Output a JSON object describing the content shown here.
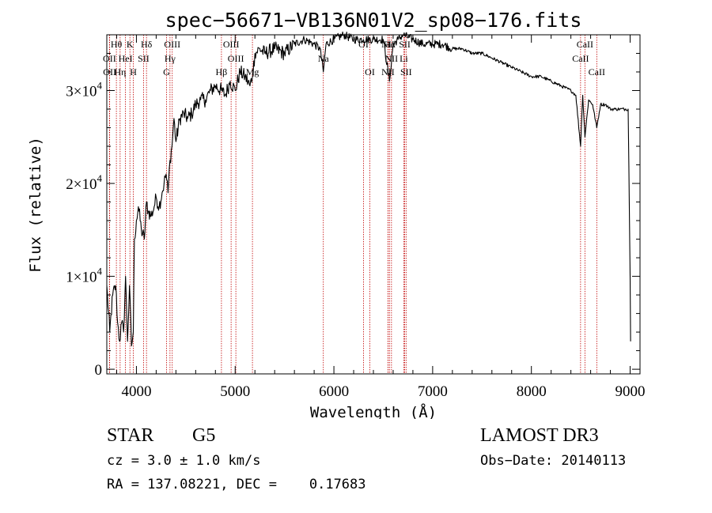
{
  "chart_data": {
    "type": "line",
    "title": "spec−56671−VB136N01V2_sp08−176.fits",
    "xlabel": "Wavelength (Å)",
    "ylabel": "Flux (relative)",
    "xlim": [
      3700,
      9100
    ],
    "ylim": [
      -500,
      36000
    ],
    "x_ticks": [
      {
        "value": 4000,
        "label": "4000"
      },
      {
        "value": 5000,
        "label": "5000"
      },
      {
        "value": 6000,
        "label": "6000"
      },
      {
        "value": 7000,
        "label": "7000"
      },
      {
        "value": 8000,
        "label": "8000"
      },
      {
        "value": 9000,
        "label": "9000"
      }
    ],
    "y_ticks": [
      {
        "value": 0,
        "mantissa": "0",
        "exponent": ""
      },
      {
        "value": 10000,
        "mantissa": "1×10",
        "exponent": "4"
      },
      {
        "value": 20000,
        "mantissa": "2×10",
        "exponent": "4"
      },
      {
        "value": 30000,
        "mantissa": "3×10",
        "exponent": "4"
      }
    ],
    "series": [
      {
        "name": "spectrum",
        "x": [
          3700,
          3730,
          3760,
          3790,
          3810,
          3830,
          3850,
          3870,
          3890,
          3910,
          3930,
          3950,
          3968,
          3980,
          4000,
          4020,
          4050,
          4080,
          4102,
          4120,
          4150,
          4180,
          4200,
          4230,
          4260,
          4280,
          4300,
          4320,
          4340,
          4360,
          4380,
          4400,
          4440,
          4480,
          4520,
          4560,
          4600,
          4650,
          4700,
          4750,
          4800,
          4861,
          4900,
          4950,
          5000,
          5050,
          5100,
          5150,
          5175,
          5200,
          5250,
          5300,
          5400,
          5500,
          5600,
          5700,
          5800,
          5860,
          5893,
          5920,
          6000,
          6100,
          6200,
          6300,
          6400,
          6500,
          6563,
          6600,
          6650,
          6700,
          6800,
          6900,
          7000,
          7100,
          7200,
          7300,
          7400,
          7500,
          7600,
          7700,
          7800,
          7900,
          8000,
          8100,
          8200,
          8300,
          8400,
          8450,
          8498,
          8520,
          8542,
          8580,
          8620,
          8662,
          8700,
          8750,
          8800,
          8850,
          8900,
          8950,
          8980,
          9000,
          9005
        ],
        "values": [
          9000,
          4000,
          8000,
          9000,
          5000,
          3000,
          5000,
          4000,
          10000,
          3000,
          9000,
          2500,
          4000,
          14000,
          16000,
          17500,
          15000,
          14000,
          18000,
          17000,
          16500,
          17500,
          18500,
          17500,
          19000,
          20000,
          21000,
          19000,
          22500,
          24000,
          27000,
          24500,
          27000,
          27500,
          27000,
          27500,
          28500,
          29000,
          29000,
          30000,
          30500,
          30000,
          29500,
          31000,
          30000,
          32000,
          31500,
          30500,
          31500,
          34000,
          34500,
          34000,
          34500,
          34000,
          35000,
          35500,
          35000,
          34500,
          32000,
          35000,
          35500,
          36000,
          35500,
          35500,
          35500,
          35500,
          31000,
          35000,
          35500,
          36000,
          35500,
          35000,
          35000,
          35000,
          34500,
          34500,
          34000,
          34000,
          33500,
          33000,
          32500,
          32000,
          31500,
          31500,
          31000,
          30500,
          30000,
          29500,
          24000,
          29500,
          25000,
          29000,
          28500,
          26000,
          28500,
          28500,
          28000,
          28000,
          28000,
          28000,
          28000,
          10000,
          3000
        ]
      }
    ],
    "line_markers": [
      {
        "name": "Hθ",
        "wavelength": 3797,
        "row": 0
      },
      {
        "name": "K",
        "wavelength": 3934,
        "row": 0
      },
      {
        "name": "Hδ",
        "wavelength": 4102,
        "row": 0
      },
      {
        "name": "OIII",
        "wavelength": 4363,
        "row": 0
      },
      {
        "name": "OIII",
        "wavelength": 4959,
        "row": 0
      },
      {
        "name": "OI",
        "wavelength": 6300,
        "row": 0
      },
      {
        "name": "NII",
        "wavelength": 6548,
        "row": 0
      },
      {
        "name": "Hα",
        "wavelength": 6563,
        "row": 0
      },
      {
        "name": "SII",
        "wavelength": 6717,
        "row": 0
      },
      {
        "name": "CaII",
        "wavelength": 8542,
        "row": 0
      },
      {
        "name": "OII",
        "wavelength": 3727,
        "row": 1
      },
      {
        "name": "HeI",
        "wavelength": 3889,
        "row": 1
      },
      {
        "name": "SII",
        "wavelength": 4072,
        "row": 1
      },
      {
        "name": "Hγ",
        "wavelength": 4340,
        "row": 1
      },
      {
        "name": "OIII",
        "wavelength": 5007,
        "row": 1
      },
      {
        "name": "Na",
        "wavelength": 5893,
        "row": 1
      },
      {
        "name": "NII",
        "wavelength": 6583,
        "row": 1
      },
      {
        "name": "Li",
        "wavelength": 6708,
        "row": 1
      },
      {
        "name": "CaII",
        "wavelength": 8498,
        "row": 1
      },
      {
        "name": "OII",
        "wavelength": 3729,
        "row": 2
      },
      {
        "name": "Hη",
        "wavelength": 3835,
        "row": 2
      },
      {
        "name": "H",
        "wavelength": 3969,
        "row": 2
      },
      {
        "name": "G",
        "wavelength": 4305,
        "row": 2
      },
      {
        "name": "Hβ",
        "wavelength": 4861,
        "row": 2
      },
      {
        "name": "Mg",
        "wavelength": 5175,
        "row": 2
      },
      {
        "name": "OI",
        "wavelength": 6364,
        "row": 2
      },
      {
        "name": "NII",
        "wavelength": 6548,
        "row": 2
      },
      {
        "name": "SII",
        "wavelength": 6731,
        "row": 2
      },
      {
        "name": "CaII",
        "wavelength": 8662,
        "row": 2
      }
    ]
  },
  "info": {
    "class": "STAR",
    "subclass": "G5",
    "survey": "LAMOST DR3",
    "cz": "cz = 3.0 ± 1.0 km/s",
    "obs_date": "Obs−Date: 20140113",
    "radec": "RA = 137.08221, DEC =    0.17683"
  },
  "colors": {
    "marker": "#c00000",
    "ink": "#000000"
  }
}
